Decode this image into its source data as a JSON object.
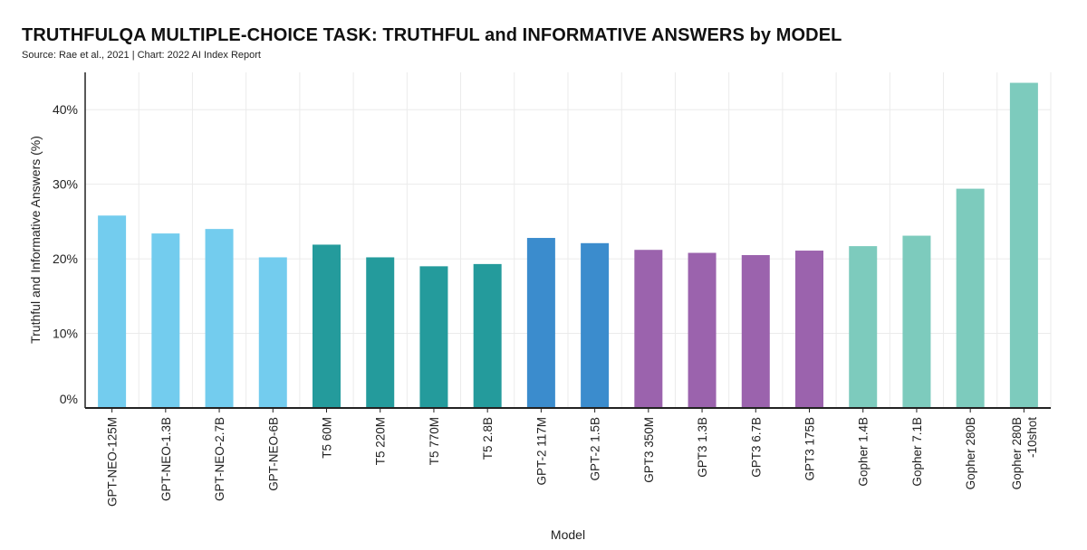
{
  "title": "TRUTHFULQA MULTIPLE-CHOICE TASK: TRUTHFUL and INFORMATIVE ANSWERS by MODEL",
  "subtitle": "Source: Rae et al., 2021 | Chart: 2022 AI Index Report",
  "chart_data": {
    "type": "bar",
    "title": "TRUTHFULQA MULTIPLE-CHOICE TASK: TRUTHFUL and INFORMATIVE ANSWERS by MODEL",
    "xlabel": "Model",
    "ylabel": "Truthful and Informative Answers (%)",
    "ylim": [
      0,
      45
    ],
    "yticks": [
      0,
      10,
      20,
      30,
      40
    ],
    "ytick_labels": [
      "0%",
      "10%",
      "20%",
      "30%",
      "40%"
    ],
    "grid": true,
    "legend": "none",
    "categories": [
      [
        "GPT-NEO-125M"
      ],
      [
        "GPT-NEO-1.3B"
      ],
      [
        "GPT-NEO-2.7B"
      ],
      [
        "GPT-NEO-6B"
      ],
      [
        "T5 60M"
      ],
      [
        "T5 220M"
      ],
      [
        "T5 770M"
      ],
      [
        "T5 2.8B"
      ],
      [
        "GPT-2 117M"
      ],
      [
        "GPT-2 1.5B"
      ],
      [
        "GPT3 350M"
      ],
      [
        "GPT3 1.3B"
      ],
      [
        "GPT3 6.7B"
      ],
      [
        "GPT3 175B"
      ],
      [
        "Gopher 1.4B"
      ],
      [
        "Gopher 7.1B"
      ],
      [
        "Gopher 280B"
      ],
      [
        "Gopher 280B",
        "-10shot"
      ]
    ],
    "values": [
      25.8,
      23.4,
      24.0,
      20.2,
      21.9,
      20.2,
      19.0,
      19.3,
      22.8,
      22.1,
      21.2,
      20.8,
      20.5,
      21.1,
      21.7,
      23.1,
      29.4,
      43.6
    ],
    "colors": [
      "#73ccee",
      "#73ccee",
      "#73ccee",
      "#73ccee",
      "#249b9c",
      "#249b9c",
      "#249b9c",
      "#249b9c",
      "#3b8ccd",
      "#3b8ccd",
      "#9b63ad",
      "#9b63ad",
      "#9b63ad",
      "#9b63ad",
      "#7dcbbd",
      "#7dcbbd",
      "#7dcbbd",
      "#7dcbbd"
    ],
    "colors_meta": {
      "gridline": "#ebebeb",
      "axis": "#222222"
    }
  }
}
